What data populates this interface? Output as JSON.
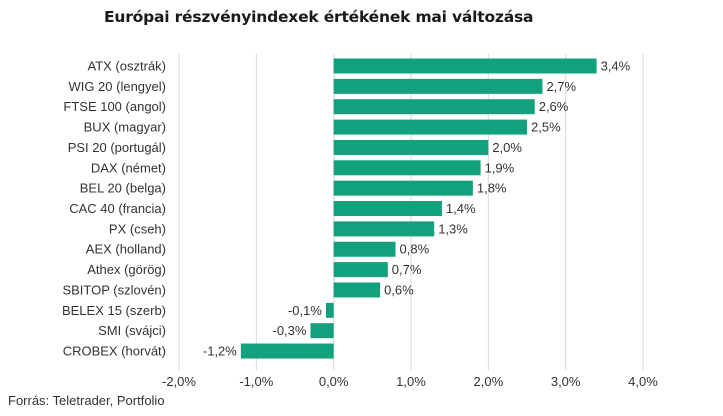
{
  "chart_data": {
    "type": "bar",
    "orientation": "horizontal",
    "title": "Európai részvényindexek értékének mai változása",
    "categories": [
      "ATX (osztrák)",
      "WIG 20 (lengyel)",
      "FTSE 100 (angol)",
      "BUX (magyar)",
      "PSI 20 (portugál)",
      "DAX (német)",
      "BEL 20 (belga)",
      "CAC 40 (francia)",
      "PX (cseh)",
      "AEX (holland)",
      "Athex (görög)",
      "SBITOP (szlovén)",
      "BELEX 15 (szerb)",
      "SMI (svájci)",
      "CROBEX (horvát)"
    ],
    "values": [
      3.4,
      2.7,
      2.6,
      2.5,
      2.0,
      1.9,
      1.8,
      1.4,
      1.3,
      0.8,
      0.7,
      0.6,
      -0.1,
      -0.3,
      -1.2
    ],
    "data_labels": [
      "3,4%",
      "2,7%",
      "2,6%",
      "2,5%",
      "2,0%",
      "1,9%",
      "1,8%",
      "1,4%",
      "1,3%",
      "0,8%",
      "0,7%",
      "0,6%",
      "-0,1%",
      "-0,3%",
      "-1,2%"
    ],
    "x_ticks": [
      -2,
      -1,
      0,
      1,
      2,
      3,
      4
    ],
    "x_tick_labels": [
      "-2,0%",
      "-1,0%",
      "0,0%",
      "1,0%",
      "2,0%",
      "3,0%",
      "4,0%"
    ],
    "xlim": [
      -2,
      4
    ],
    "xlabel": "",
    "ylabel": "",
    "grid": "vertical",
    "legend": "none",
    "bar_color": "#13a07d",
    "grid_color": "#d9d9d9",
    "source": "Forrás: Teletrader, Portfolio"
  }
}
